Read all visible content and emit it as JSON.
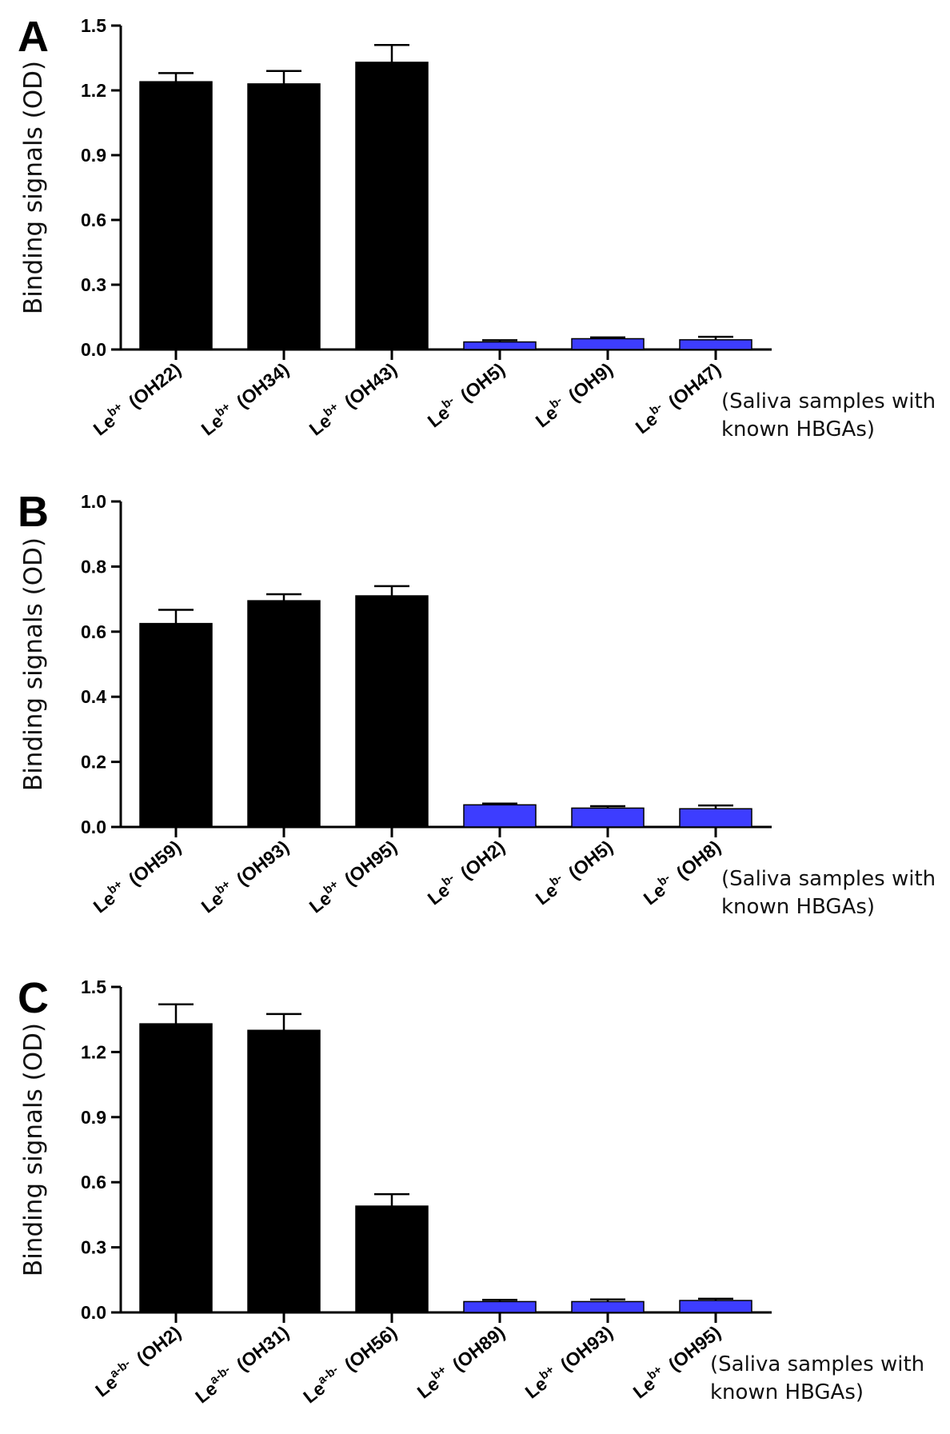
{
  "chart_data": [
    {
      "type": "bar",
      "panel": "A",
      "ylabel": "Binding signals (OD)",
      "ylim": [
        0,
        1.5
      ],
      "yticks": [
        "0.0",
        "0.3",
        "0.6",
        "0.9",
        "1.2",
        "1.5"
      ],
      "categories": [
        {
          "base": "Le",
          "sup": "b+",
          "sample": "(OH22)"
        },
        {
          "base": "Le",
          "sup": "b+",
          "sample": "(OH34)"
        },
        {
          "base": "Le",
          "sup": "b+",
          "sample": "(OH43)"
        },
        {
          "base": "Le",
          "sup": "b-",
          "sample": "(OH5)"
        },
        {
          "base": "Le",
          "sup": "b-",
          "sample": "(OH9)"
        },
        {
          "base": "Le",
          "sup": "b-",
          "sample": "(OH47)"
        }
      ],
      "values": [
        1.24,
        1.23,
        1.33,
        0.035,
        0.05,
        0.045
      ],
      "errors": [
        0.04,
        0.06,
        0.08,
        0.008,
        0.006,
        0.014
      ],
      "colors": [
        "#000000",
        "#000000",
        "#000000",
        "#3d3dff",
        "#3d3dff",
        "#3d3dff"
      ],
      "note": [
        "(Saliva samples with",
        "known HBGAs)"
      ]
    },
    {
      "type": "bar",
      "panel": "B",
      "ylabel": "Binding signals (OD)",
      "ylim": [
        0,
        1.0
      ],
      "yticks": [
        "0.0",
        "0.2",
        "0.4",
        "0.6",
        "0.8",
        "1.0"
      ],
      "categories": [
        {
          "base": "Le",
          "sup": "b+",
          "sample": "(OH59)"
        },
        {
          "base": "Le",
          "sup": "b+",
          "sample": "(OH93)"
        },
        {
          "base": "Le",
          "sup": "b+",
          "sample": "(OH95)"
        },
        {
          "base": "Le",
          "sup": "b-",
          "sample": "(OH2)"
        },
        {
          "base": "Le",
          "sup": "b-",
          "sample": "(OH5)"
        },
        {
          "base": "Le",
          "sup": "b-",
          "sample": "(OH8)"
        }
      ],
      "values": [
        0.625,
        0.695,
        0.71,
        0.068,
        0.058,
        0.056
      ],
      "errors": [
        0.042,
        0.02,
        0.03,
        0.004,
        0.006,
        0.01
      ],
      "colors": [
        "#000000",
        "#000000",
        "#000000",
        "#3d3dff",
        "#3d3dff",
        "#3d3dff"
      ],
      "note": [
        "(Saliva samples with",
        "known HBGAs)"
      ]
    },
    {
      "type": "bar",
      "panel": "C",
      "ylabel": "Binding signals (OD)",
      "ylim": [
        0,
        1.5
      ],
      "yticks": [
        "0.0",
        "0.3",
        "0.6",
        "0.9",
        "1.2",
        "1.5"
      ],
      "categories": [
        {
          "base": "Le",
          "sup": "a-b-",
          "sample": "(OH2)"
        },
        {
          "base": "Le",
          "sup": "a-b-",
          "sample": "(OH31)"
        },
        {
          "base": "Le",
          "sup": "a-b-",
          "sample": "(OH56)"
        },
        {
          "base": "Le",
          "sup": "b+",
          "sample": "(OH89)"
        },
        {
          "base": "Le",
          "sup": "b+",
          "sample": "(OH93)"
        },
        {
          "base": "Le",
          "sup": "b+",
          "sample": "(OH95)"
        }
      ],
      "values": [
        1.33,
        1.3,
        0.49,
        0.05,
        0.05,
        0.055
      ],
      "errors": [
        0.09,
        0.075,
        0.055,
        0.008,
        0.01,
        0.008
      ],
      "colors": [
        "#000000",
        "#000000",
        "#000000",
        "#3d3dff",
        "#3d3dff",
        "#3d3dff"
      ],
      "note": [
        "(Saliva samples with",
        "known HBGAs)"
      ]
    }
  ]
}
